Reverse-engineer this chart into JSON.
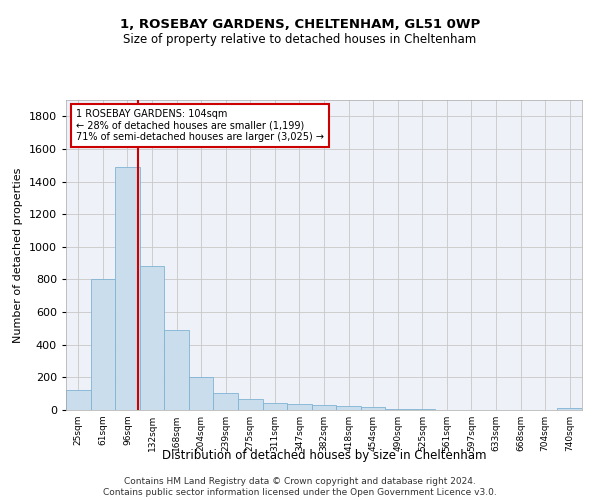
{
  "title": "1, ROSEBAY GARDENS, CHELTENHAM, GL51 0WP",
  "subtitle": "Size of property relative to detached houses in Cheltenham",
  "xlabel": "Distribution of detached houses by size in Cheltenham",
  "ylabel": "Number of detached properties",
  "footnote1": "Contains HM Land Registry data © Crown copyright and database right 2024.",
  "footnote2": "Contains public sector information licensed under the Open Government Licence v3.0.",
  "categories": [
    "25sqm",
    "61sqm",
    "96sqm",
    "132sqm",
    "168sqm",
    "204sqm",
    "239sqm",
    "275sqm",
    "311sqm",
    "347sqm",
    "382sqm",
    "418sqm",
    "454sqm",
    "490sqm",
    "525sqm",
    "561sqm",
    "597sqm",
    "633sqm",
    "668sqm",
    "704sqm",
    "740sqm"
  ],
  "values": [
    125,
    800,
    1490,
    880,
    490,
    205,
    105,
    65,
    45,
    35,
    30,
    22,
    18,
    8,
    5,
    3,
    2,
    2,
    1,
    1,
    15
  ],
  "bar_color": "#c9dded",
  "bar_edge_color": "#7fb3d3",
  "grid_color": "#c8c8c8",
  "annotation_line1": "1 ROSEBAY GARDENS: 104sqm",
  "annotation_line2": "← 28% of detached houses are smaller (1,199)",
  "annotation_line3": "71% of semi-detached houses are larger (3,025) →",
  "annotation_box_color": "#ffffff",
  "annotation_box_edge": "#cc0000",
  "vline_color": "#cc0000",
  "vline_x": 2.45,
  "ylim": [
    0,
    1900
  ],
  "yticks": [
    0,
    200,
    400,
    600,
    800,
    1000,
    1200,
    1400,
    1600,
    1800
  ],
  "bg_color": "#eef2f8",
  "title_fontsize": 9,
  "subtitle_fontsize": 8.5
}
